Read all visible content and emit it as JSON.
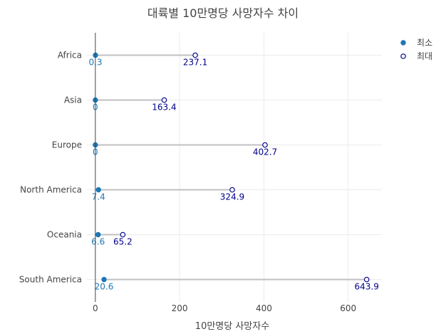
{
  "chart_data": {
    "type": "dumbbell",
    "title": "대륙별 10만명당 사망자수 차이",
    "xlabel": "10만명당 사망자수",
    "ylabel": "",
    "xlim": [
      -20,
      680
    ],
    "xticks": [
      0,
      200,
      400,
      600
    ],
    "categories": [
      "Africa",
      "Asia",
      "Europe",
      "North America",
      "Oceania",
      "South America"
    ],
    "series": [
      {
        "name": "최소",
        "values": [
          0.3,
          0,
          0,
          7.4,
          6.6,
          20.6
        ],
        "color": "#1f77b4",
        "marker": "filled-circle"
      },
      {
        "name": "최대",
        "values": [
          237.1,
          163.4,
          402.7,
          324.9,
          65.2,
          643.9
        ],
        "color": "#00008b",
        "marker": "open-circle"
      }
    ],
    "segment_color": "#c0c0c0",
    "grid": true,
    "legend": "top-right"
  }
}
